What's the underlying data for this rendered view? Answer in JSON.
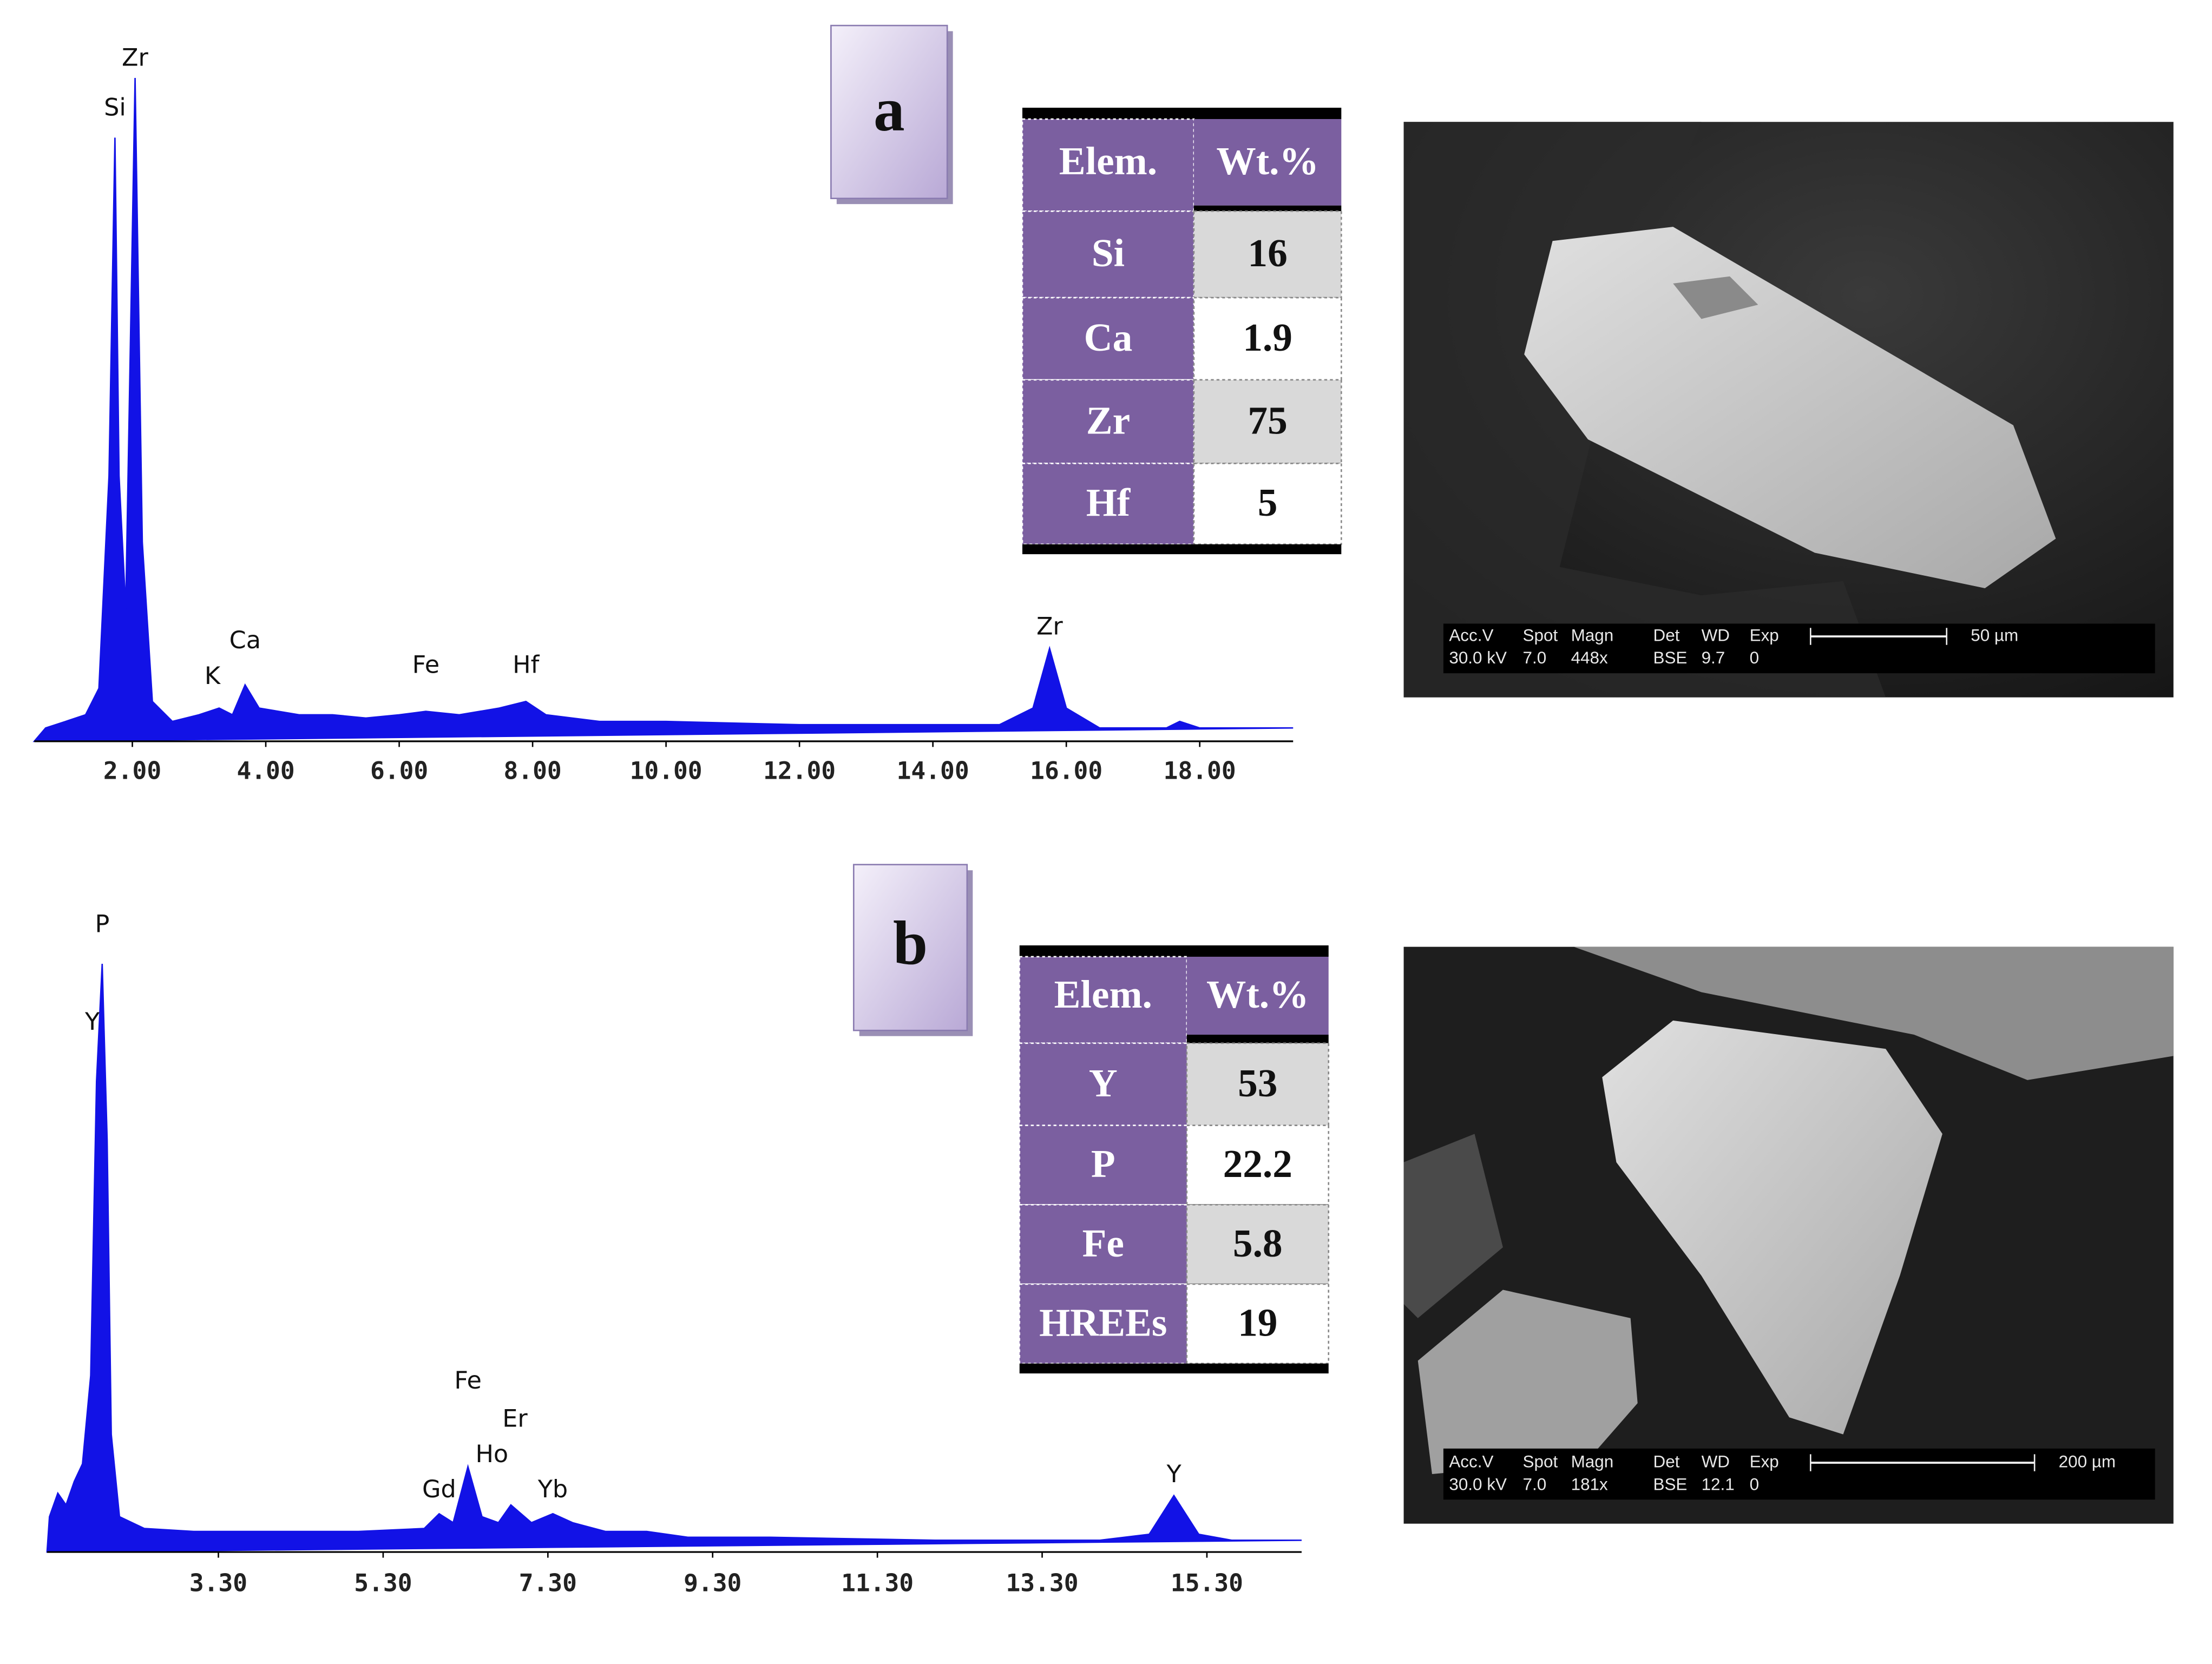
{
  "chart_data": [
    {
      "type": "area",
      "color": "#1212e6",
      "xlim": [
        0.53,
        19.4
      ],
      "ylim": [
        0,
        110
      ],
      "xticks": [
        {
          "value": 2,
          "label": "2.00"
        },
        {
          "value": 4,
          "label": "4.00"
        },
        {
          "value": 6,
          "label": "6.00"
        },
        {
          "value": 8,
          "label": "8.00"
        },
        {
          "value": 10,
          "label": "10.00"
        },
        {
          "value": 12,
          "label": "12.00"
        },
        {
          "value": 14,
          "label": "14.00"
        },
        {
          "value": 16,
          "label": "16.00"
        },
        {
          "value": 18,
          "label": "18.00"
        }
      ],
      "x": [
        0.53,
        0.7,
        1.0,
        1.3,
        1.5,
        1.65,
        1.74,
        1.8,
        1.9,
        2.04,
        2.15,
        2.3,
        2.6,
        3.0,
        3.3,
        3.5,
        3.69,
        3.9,
        4.5,
        5.0,
        5.5,
        6.0,
        6.4,
        6.9,
        7.5,
        7.9,
        8.2,
        9.0,
        10.0,
        12.0,
        14.0,
        15.0,
        15.5,
        15.75,
        16.0,
        16.5,
        17.5,
        17.7,
        18.0,
        19.4
      ],
      "values": [
        0,
        2,
        3,
        4,
        8,
        40,
        91,
        40,
        20,
        100,
        30,
        6,
        3,
        4,
        5,
        4,
        8.5,
        5,
        4,
        4,
        3.5,
        4,
        4.5,
        4,
        5,
        6,
        4,
        3,
        3,
        2.5,
        2.5,
        2.5,
        5,
        14,
        5,
        2,
        2,
        3,
        2,
        2
      ],
      "annotations": [
        {
          "text": "Zr",
          "x": 2.04,
          "y": 102.8
        },
        {
          "text": "Si",
          "x": 1.74,
          "y": 95.3
        },
        {
          "text": "K",
          "x": 3.2,
          "y": 9.6
        },
        {
          "text": "Ca",
          "x": 3.69,
          "y": 15
        },
        {
          "text": "Fe",
          "x": 6.4,
          "y": 11.3
        },
        {
          "text": "Hf",
          "x": 7.9,
          "y": 11.3
        },
        {
          "text": "Zr",
          "x": 15.75,
          "y": 17.1
        }
      ]
    },
    {
      "type": "area",
      "color": "#1212e6",
      "xlim": [
        1.22,
        16.45
      ],
      "ylim": [
        0,
        110
      ],
      "xticks": [
        {
          "value": 3.3,
          "label": "3.30"
        },
        {
          "value": 5.3,
          "label": "5.30"
        },
        {
          "value": 7.3,
          "label": "7.30"
        },
        {
          "value": 9.3,
          "label": "9.30"
        },
        {
          "value": 11.3,
          "label": "11.30"
        },
        {
          "value": 13.3,
          "label": "13.30"
        },
        {
          "value": 15.3,
          "label": "15.30"
        }
      ],
      "x": [
        1.22,
        1.25,
        1.35,
        1.45,
        1.55,
        1.65,
        1.75,
        1.82,
        1.89,
        1.95,
        2.0,
        2.1,
        2.4,
        3.0,
        4.0,
        5.0,
        5.8,
        5.98,
        6.15,
        6.33,
        6.5,
        6.7,
        6.85,
        7.1,
        7.36,
        7.6,
        8.0,
        8.5,
        9.0,
        10.0,
        12.0,
        14.0,
        14.6,
        14.9,
        15.2,
        15.6,
        16.45
      ],
      "values": [
        0,
        6,
        10,
        8,
        12,
        15,
        30,
        80,
        100,
        70,
        20,
        6,
        4,
        3.5,
        3.5,
        3.5,
        4,
        6.5,
        5,
        14.5,
        6,
        5,
        8,
        5,
        6.5,
        5,
        3.5,
        3.5,
        2.5,
        2.5,
        2,
        2,
        3,
        9.6,
        3,
        2,
        2
      ],
      "annotations": [
        {
          "text": "P",
          "x": 1.89,
          "y": 106.5
        },
        {
          "text": "Y",
          "x": 1.77,
          "y": 89.9
        },
        {
          "text": "Fe",
          "x": 6.33,
          "y": 28.9
        },
        {
          "text": "Er",
          "x": 6.9,
          "y": 22.4
        },
        {
          "text": "Ho",
          "x": 6.62,
          "y": 16.4
        },
        {
          "text": "Gd",
          "x": 5.98,
          "y": 10.4
        },
        {
          "text": "Yb",
          "x": 7.36,
          "y": 10.4
        },
        {
          "text": "Y",
          "x": 14.9,
          "y": 13
        }
      ]
    }
  ],
  "panel_labels": [
    "a",
    "b"
  ],
  "tables": [
    {
      "header": [
        "Elem.",
        "Wt.%"
      ],
      "rows": [
        [
          "Si",
          16
        ],
        [
          "Ca",
          1.9
        ],
        [
          "Zr",
          75
        ],
        [
          "Hf",
          5
        ]
      ]
    },
    {
      "header": [
        "Elem.",
        "Wt.%"
      ],
      "rows": [
        [
          "Y",
          53
        ],
        [
          "P",
          22.2
        ],
        [
          "Fe",
          5.8
        ],
        [
          "HREEs",
          19
        ]
      ]
    }
  ],
  "micrographs": [
    {
      "header": [
        "Acc.V",
        "Spot",
        "Magn",
        "Det",
        "WD",
        "Exp"
      ],
      "values": [
        "30.0 kV",
        "7.0",
        "448x",
        "BSE",
        "9.7",
        "0"
      ],
      "scale": "50 µm"
    },
    {
      "header": [
        "Acc.V",
        "Spot",
        "Magn",
        "Det",
        "WD",
        "Exp"
      ],
      "values": [
        "30.0 kV",
        "7.0",
        "181x",
        "BSE",
        "12.1",
        "0"
      ],
      "scale": "200 µm"
    }
  ]
}
